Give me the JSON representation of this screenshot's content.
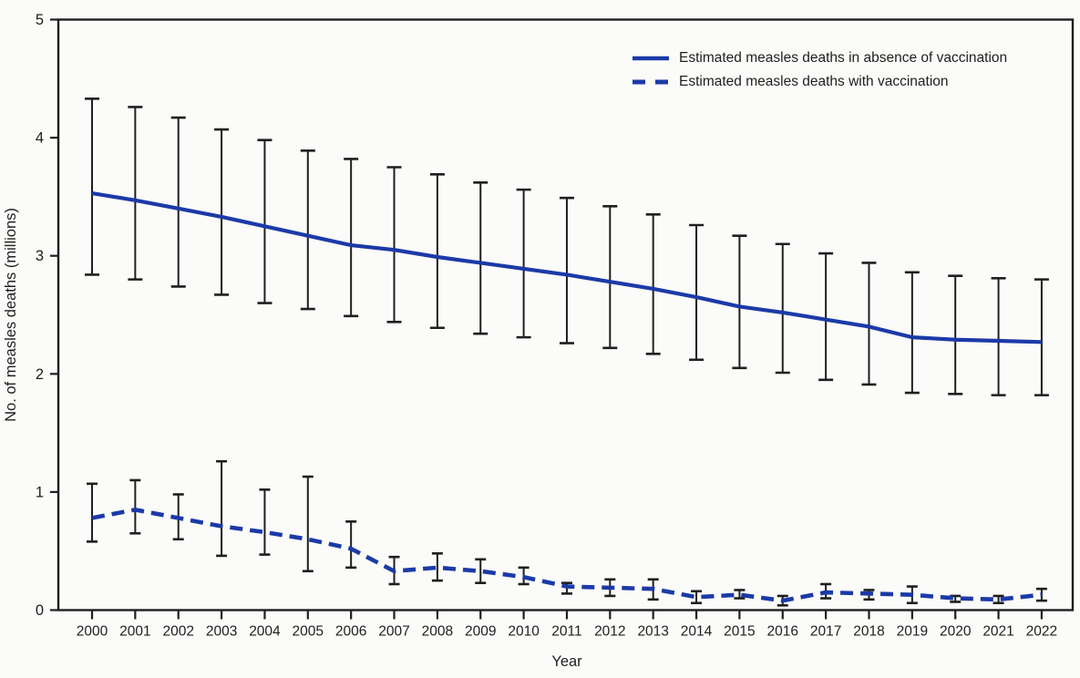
{
  "page": {
    "background": "#fbfbf9"
  },
  "chart_data": {
    "type": "line",
    "title": "",
    "xlabel": "Year",
    "ylabel": "No. of measles deaths (millions)",
    "ylim": [
      0,
      5
    ],
    "yticks": [
      "0",
      "1",
      "2",
      "3",
      "4",
      "5"
    ],
    "grid": false,
    "legend_position": "top-right-inside",
    "axis_color": "#1f1f1f",
    "error_bar_color": "#1f1f1f",
    "x": [
      2000,
      2001,
      2002,
      2003,
      2004,
      2005,
      2006,
      2007,
      2008,
      2009,
      2010,
      2011,
      2012,
      2013,
      2014,
      2015,
      2016,
      2017,
      2018,
      2019,
      2020,
      2021,
      2022
    ],
    "series": [
      {
        "name": "Estimated measles deaths in absence of vaccination",
        "style": "solid",
        "color": "#1b3aa8",
        "values": [
          3.53,
          3.47,
          3.4,
          3.33,
          3.25,
          3.17,
          3.09,
          3.05,
          2.99,
          2.94,
          2.89,
          2.84,
          2.78,
          2.72,
          2.65,
          2.57,
          2.52,
          2.46,
          2.4,
          2.31,
          2.29,
          2.28,
          2.27
        ],
        "ci_low": [
          2.84,
          2.8,
          2.74,
          2.67,
          2.6,
          2.55,
          2.49,
          2.44,
          2.39,
          2.34,
          2.31,
          2.26,
          2.22,
          2.17,
          2.12,
          2.05,
          2.01,
          1.95,
          1.91,
          1.84,
          1.83,
          1.82,
          1.82
        ],
        "ci_high": [
          4.33,
          4.26,
          4.17,
          4.07,
          3.98,
          3.89,
          3.82,
          3.75,
          3.69,
          3.62,
          3.56,
          3.49,
          3.42,
          3.35,
          3.26,
          3.17,
          3.1,
          3.02,
          2.94,
          2.86,
          2.83,
          2.81,
          2.8
        ]
      },
      {
        "name": "Estimated measles deaths with vaccination",
        "style": "dashed",
        "color": "#1b3aa8",
        "values": [
          0.78,
          0.85,
          0.78,
          0.71,
          0.66,
          0.6,
          0.52,
          0.33,
          0.36,
          0.33,
          0.28,
          0.2,
          0.19,
          0.18,
          0.11,
          0.13,
          0.08,
          0.15,
          0.14,
          0.13,
          0.1,
          0.09,
          0.13
        ],
        "ci_low": [
          0.58,
          0.65,
          0.6,
          0.46,
          0.47,
          0.33,
          0.36,
          0.22,
          0.25,
          0.23,
          0.22,
          0.14,
          0.12,
          0.09,
          0.06,
          0.1,
          0.04,
          0.1,
          0.09,
          0.06,
          0.07,
          0.06,
          0.08
        ],
        "ci_high": [
          1.07,
          1.1,
          0.98,
          1.26,
          1.02,
          1.13,
          0.75,
          0.45,
          0.48,
          0.43,
          0.36,
          0.23,
          0.26,
          0.26,
          0.16,
          0.17,
          0.12,
          0.22,
          0.17,
          0.2,
          0.12,
          0.12,
          0.18
        ]
      }
    ]
  }
}
